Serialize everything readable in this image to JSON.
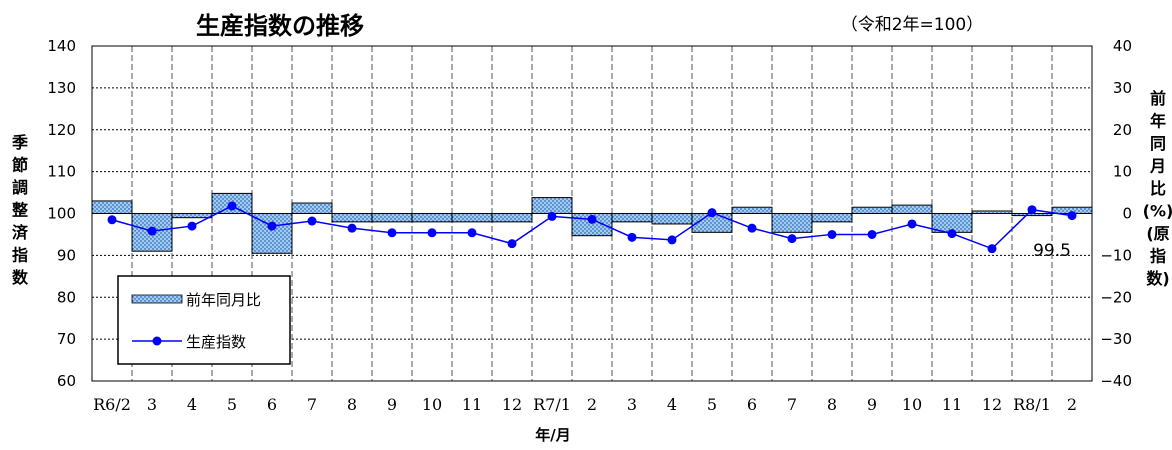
{
  "chart_data": {
    "type": "bar+line",
    "title": "生産指数の推移",
    "subtitle": "（令和2年=100）",
    "xlabel": "年/月",
    "ylabel_left": [
      "季",
      "節",
      "調",
      "整",
      "済",
      "指",
      "数"
    ],
    "ylabel_right": [
      "前",
      "年",
      "同",
      "月",
      "比",
      "(%)",
      "(原",
      "指",
      "数)"
    ],
    "categories": [
      "R6/2",
      "3",
      "4",
      "5",
      "6",
      "7",
      "8",
      "9",
      "10",
      "11",
      "12",
      "R7/1",
      "2",
      "3",
      "4",
      "5",
      "6",
      "7",
      "8",
      "9",
      "10",
      "11",
      "12",
      "R8/1",
      "2"
    ],
    "left_axis": {
      "ylim": [
        60,
        140
      ],
      "ticks": [
        60,
        70,
        80,
        90,
        100,
        110,
        120,
        130,
        140
      ]
    },
    "right_axis": {
      "ylim": [
        -40,
        40
      ],
      "ticks": [
        "−40",
        "−30",
        "−20",
        "−10",
        "0",
        "10",
        "20",
        "30",
        "40"
      ]
    },
    "series": [
      {
        "name": "前年同月比",
        "type": "bar",
        "axis": "right",
        "values": [
          3.0,
          -9.0,
          -1.0,
          4.8,
          -9.5,
          2.5,
          -2.0,
          -2.0,
          -2.0,
          -2.0,
          -2.0,
          3.8,
          -5.3,
          -2.0,
          -2.5,
          -4.5,
          1.5,
          -4.5,
          -2.0,
          1.5,
          2.0,
          -4.5,
          0.6,
          -0.5,
          1.5
        ],
        "color": "#99ccff"
      },
      {
        "name": "生産指数",
        "type": "line",
        "axis": "left",
        "values": [
          98.5,
          95.8,
          97.0,
          101.8,
          97.0,
          98.2,
          96.5,
          95.4,
          95.4,
          95.4,
          92.8,
          99.3,
          98.6,
          94.3,
          93.7,
          100.2,
          96.5,
          94.0,
          95.0,
          95.0,
          97.5,
          95.2,
          91.6,
          100.9,
          99.5
        ],
        "color": "#0000ff"
      }
    ],
    "annotation": "99.5",
    "grid": true,
    "legend_position": "bottom-left"
  }
}
